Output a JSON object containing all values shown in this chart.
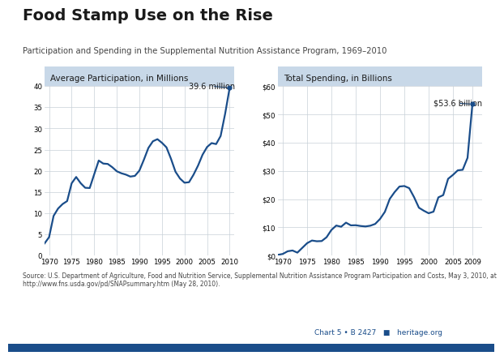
{
  "title": "Food Stamp Use on the Rise",
  "subtitle": "Participation and Spending in the Supplemental Nutrition Assistance Program, 1969–2010",
  "left_panel_title": "Average Participation, in Millions",
  "right_panel_title": "Total Spending, in Billions",
  "source_text": "Source: U.S. Department of Agriculture, Food and Nutrition Service, Supplemental Nutrition Assistance Program Participation and Costs, May 3, 2010, at\nhttp://www.fns.usda.gov/pd/SNAPsummary.htm (May 28, 2010).",
  "chart_ref": "Chart 5 • B 2427",
  "website": "heritage.org",
  "participation_years": [
    1969,
    1970,
    1971,
    1972,
    1973,
    1974,
    1975,
    1976,
    1977,
    1978,
    1979,
    1980,
    1981,
    1982,
    1983,
    1984,
    1985,
    1986,
    1987,
    1988,
    1989,
    1990,
    1991,
    1992,
    1993,
    1994,
    1995,
    1996,
    1997,
    1998,
    1999,
    2000,
    2001,
    2002,
    2003,
    2004,
    2005,
    2006,
    2007,
    2008,
    2009,
    2010
  ],
  "participation_values": [
    2.878,
    4.34,
    9.368,
    11.109,
    12.166,
    12.862,
    17.064,
    18.549,
    17.077,
    16.001,
    15.944,
    19.204,
    22.43,
    21.717,
    21.625,
    20.854,
    19.899,
    19.429,
    19.113,
    18.645,
    18.806,
    20.049,
    22.625,
    25.407,
    26.981,
    27.474,
    26.619,
    25.543,
    22.858,
    19.791,
    18.183,
    17.194,
    17.318,
    19.096,
    21.249,
    23.811,
    25.628,
    26.549,
    26.316,
    28.223,
    33.49,
    39.612
  ],
  "spending_years": [
    1969,
    1970,
    1971,
    1972,
    1973,
    1974,
    1975,
    1976,
    1977,
    1978,
    1979,
    1980,
    1981,
    1982,
    1983,
    1984,
    1985,
    1986,
    1987,
    1988,
    1989,
    1990,
    1991,
    1992,
    1993,
    1994,
    1995,
    1996,
    1997,
    1998,
    1999,
    2000,
    2001,
    2002,
    2003,
    2004,
    2005,
    2006,
    2007,
    2008,
    2009
  ],
  "spending_values": [
    0.249,
    0.577,
    1.522,
    1.797,
    1.04,
    2.718,
    4.386,
    5.326,
    5.067,
    5.14,
    6.48,
    9.076,
    10.631,
    10.211,
    11.653,
    10.7,
    10.744,
    10.474,
    10.31,
    10.574,
    11.196,
    12.96,
    15.491,
    20.063,
    22.475,
    24.447,
    24.62,
    23.875,
    20.681,
    16.944,
    15.885,
    14.983,
    15.547,
    20.607,
    21.404,
    27.168,
    28.567,
    30.188,
    30.369,
    34.608,
    53.621
  ],
  "line_color": "#1a4d8a",
  "bg_color": "#ffffff",
  "panel_header_color": "#c8d8e8",
  "grid_color": "#c8d0d8",
  "participation_annotation": "39.6 million",
  "spending_annotation": "$53.6 billion",
  "participation_ylim": [
    0,
    40
  ],
  "spending_ylim": [
    0,
    60
  ],
  "participation_yticks": [
    0,
    5,
    10,
    15,
    20,
    25,
    30,
    35,
    40
  ],
  "spending_yticks": [
    0,
    10,
    20,
    30,
    40,
    50,
    60
  ],
  "spending_yticklabels": [
    "$0",
    "$10",
    "$20",
    "$30",
    "$40",
    "$50",
    "$60"
  ],
  "xticks": [
    1970,
    1975,
    1980,
    1985,
    1990,
    1995,
    2000,
    2005,
    2010
  ],
  "spending_xticks": [
    1970,
    1975,
    1980,
    1985,
    1990,
    1995,
    2000,
    2005,
    2009
  ],
  "title_color": "#1a1a1a",
  "subtitle_color": "#444444",
  "source_color": "#444444",
  "ref_color": "#1a4d8a",
  "bottom_bar_color": "#1a4d8a"
}
